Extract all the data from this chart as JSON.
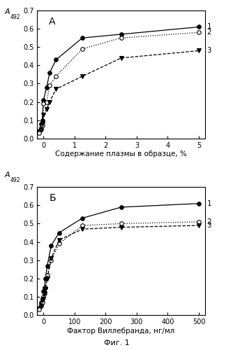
{
  "panel_A": {
    "title": "А",
    "xlabel": "Содержание плазмы в образце, %",
    "xlim": [
      -0.2,
      5.2
    ],
    "ylim": [
      0.0,
      0.7
    ],
    "xticks": [
      0,
      1,
      2,
      3,
      4,
      5
    ],
    "xticklabels": [
      "0",
      "1",
      "2",
      "3",
      "4",
      "5"
    ],
    "yticks": [
      0.0,
      0.1,
      0.2,
      0.3,
      0.4,
      0.5,
      0.6,
      0.7
    ],
    "series1": {
      "x": [
        -0.15,
        -0.08,
        -0.04,
        0.0,
        0.1,
        0.2,
        0.4,
        1.25,
        2.5,
        5.0
      ],
      "y": [
        0.04,
        0.08,
        0.1,
        0.21,
        0.28,
        0.36,
        0.43,
        0.55,
        0.57,
        0.61
      ],
      "marker": "o",
      "filled": true,
      "linestyle": "-",
      "label": "1"
    },
    "series2": {
      "x": [
        -0.15,
        -0.08,
        -0.04,
        0.0,
        0.1,
        0.2,
        0.4,
        1.25,
        2.5,
        5.0
      ],
      "y": [
        0.03,
        0.05,
        0.07,
        0.19,
        0.2,
        0.29,
        0.34,
        0.49,
        0.55,
        0.58
      ],
      "marker": "o",
      "filled": false,
      "linestyle": ":",
      "label": "2"
    },
    "series3": {
      "x": [
        -0.08,
        -0.04,
        0.0,
        0.1,
        0.2,
        0.4,
        1.25,
        2.5,
        5.0
      ],
      "y": [
        0.05,
        0.08,
        0.13,
        0.16,
        0.2,
        0.27,
        0.34,
        0.44,
        0.48
      ],
      "marker": "v",
      "filled": true,
      "linestyle": "--",
      "label": "3"
    }
  },
  "panel_B": {
    "title": "Б",
    "xlabel": "Фактор Виллебранда, нг/мл",
    "xlim": [
      -20,
      520
    ],
    "ylim": [
      0.0,
      0.7
    ],
    "xticks": [
      0,
      100,
      200,
      300,
      400,
      500
    ],
    "xticklabels": [
      "0",
      "100",
      "200",
      "300",
      "400",
      "500"
    ],
    "yticks": [
      0.0,
      0.1,
      0.2,
      0.3,
      0.4,
      0.5,
      0.6,
      0.7
    ],
    "series1": {
      "x": [
        -15,
        -7,
        -3,
        0,
        3,
        6,
        12,
        25,
        50,
        125,
        250,
        500
      ],
      "y": [
        0.04,
        0.07,
        0.09,
        0.13,
        0.15,
        0.2,
        0.27,
        0.38,
        0.45,
        0.53,
        0.59,
        0.61
      ],
      "marker": "o",
      "filled": true,
      "linestyle": "-",
      "label": "1"
    },
    "series2": {
      "x": [
        -15,
        -7,
        -3,
        0,
        3,
        6,
        12,
        25,
        50,
        125,
        250,
        500
      ],
      "y": [
        0.03,
        0.05,
        0.07,
        0.1,
        0.12,
        0.15,
        0.22,
        0.3,
        0.39,
        0.49,
        0.5,
        0.51
      ],
      "marker": "o",
      "filled": false,
      "linestyle": ":",
      "label": "2"
    },
    "series3": {
      "x": [
        -7,
        -3,
        0,
        3,
        6,
        12,
        25,
        50,
        125,
        250,
        500
      ],
      "y": [
        0.05,
        0.08,
        0.09,
        0.12,
        0.14,
        0.2,
        0.31,
        0.41,
        0.47,
        0.48,
        0.49
      ],
      "marker": "v",
      "filled": true,
      "linestyle": "--",
      "label": "3"
    }
  },
  "ylabel_main": "A",
  "ylabel_sub": "492",
  "fig_label": "Фиг. 1",
  "color": "black",
  "bg_color": "white"
}
